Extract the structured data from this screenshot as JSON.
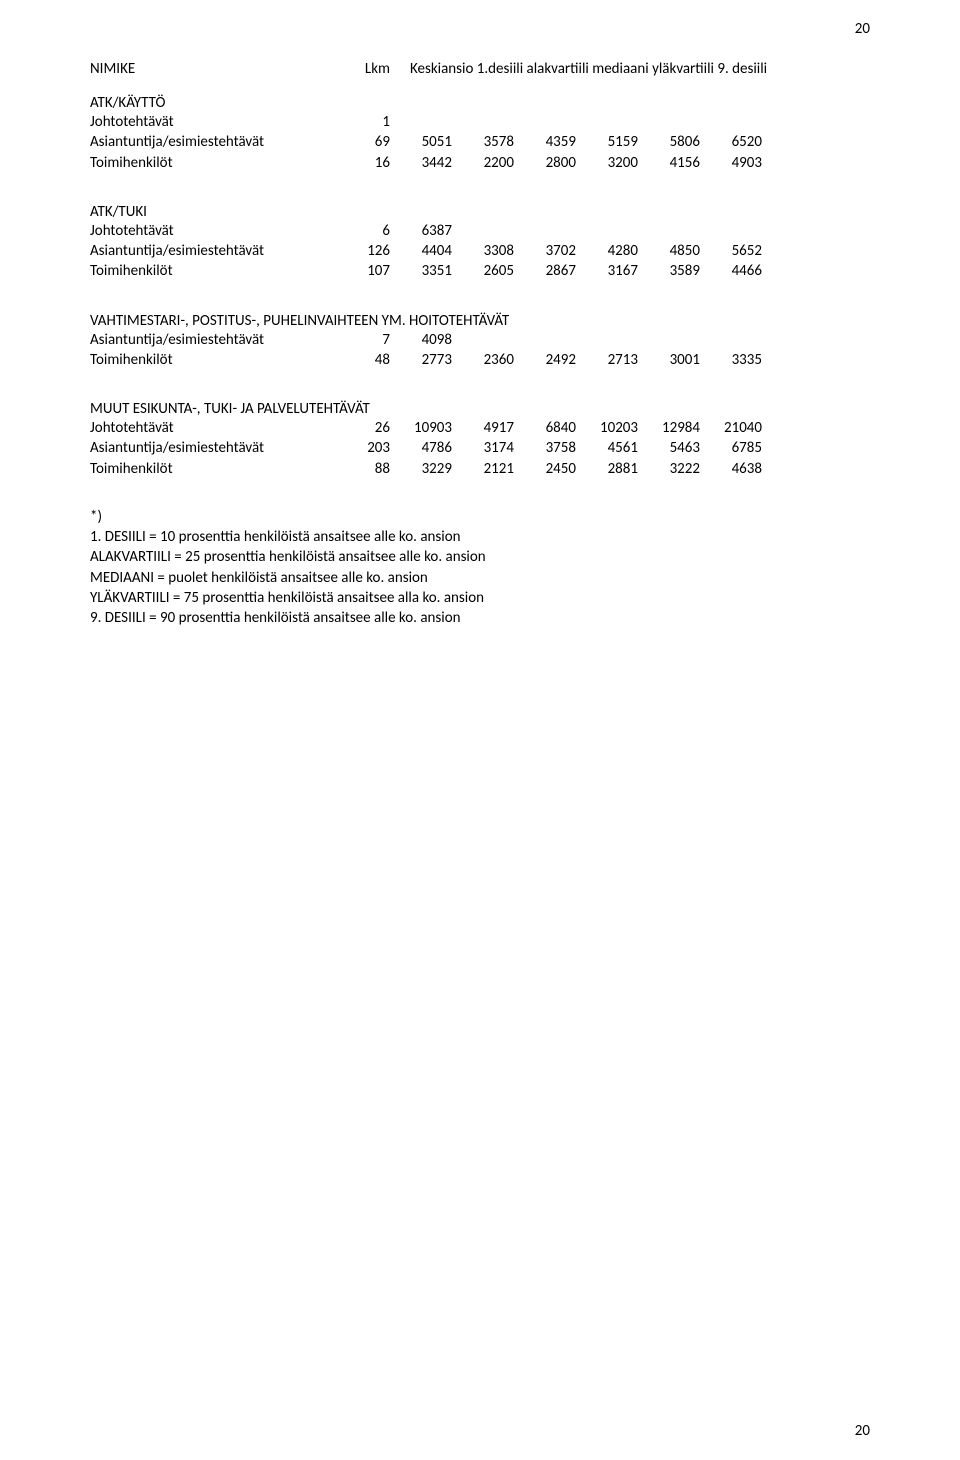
{
  "page_number_top": "20",
  "page_number_bottom": "20",
  "header": {
    "col_name": "NIMIKE",
    "col_lkm": "Lkm",
    "col_rest": "Keskiansio 1.desiili alakvartiili mediaani yläkvartiili 9. desiili"
  },
  "sections": [
    {
      "title": "ATK/KÄYTTÖ",
      "rows": [
        {
          "label": "Johtotehtävät",
          "lkm": "1",
          "vals": [
            "",
            "",
            "",
            "",
            "",
            ""
          ]
        },
        {
          "label": "Asiantuntija/esimiestehtävät",
          "lkm": "69",
          "vals": [
            "5051",
            "3578",
            "4359",
            "5159",
            "5806",
            "6520"
          ]
        },
        {
          "label": "Toimihenkilöt",
          "lkm": "16",
          "vals": [
            "3442",
            "2200",
            "2800",
            "3200",
            "4156",
            "4903"
          ]
        }
      ]
    },
    {
      "title": "ATK/TUKI",
      "rows": [
        {
          "label": "Johtotehtävät",
          "lkm": "6",
          "vals": [
            "6387",
            "",
            "",
            "",
            "",
            ""
          ]
        },
        {
          "label": "Asiantuntija/esimiestehtävät",
          "lkm": "126",
          "vals": [
            "4404",
            "3308",
            "3702",
            "4280",
            "4850",
            "5652"
          ]
        },
        {
          "label": "Toimihenkilöt",
          "lkm": "107",
          "vals": [
            "3351",
            "2605",
            "2867",
            "3167",
            "3589",
            "4466"
          ]
        }
      ]
    },
    {
      "title": "VAHTIMESTARI-, POSTITUS-, PUHELINVAIHTEEN YM. HOITOTEHTÄVÄT",
      "rows": [
        {
          "label": "Asiantuntija/esimiestehtävät",
          "lkm": "7",
          "vals": [
            "4098",
            "",
            "",
            "",
            "",
            ""
          ]
        },
        {
          "label": "Toimihenkilöt",
          "lkm": "48",
          "vals": [
            "2773",
            "2360",
            "2492",
            "2713",
            "3001",
            "3335"
          ]
        }
      ]
    },
    {
      "title": "MUUT ESIKUNTA-, TUKI- JA PALVELUTEHTÄVÄT",
      "rows": [
        {
          "label": "Johtotehtävät",
          "lkm": "26",
          "vals": [
            "10903",
            "4917",
            "6840",
            "10203",
            "12984",
            "21040"
          ]
        },
        {
          "label": "Asiantuntija/esimiestehtävät",
          "lkm": "203",
          "vals": [
            "4786",
            "3174",
            "3758",
            "4561",
            "5463",
            "6785"
          ]
        },
        {
          "label": "Toimihenkilöt",
          "lkm": "88",
          "vals": [
            "3229",
            "2121",
            "2450",
            "2881",
            "3222",
            "4638"
          ]
        }
      ]
    }
  ],
  "notes": [
    "*)",
    "1. DESIILI = 10 prosenttia henkilöistä ansaitsee alle ko. ansion",
    "ALAKVARTIILI = 25 prosenttia henkilöistä ansaitsee alle ko. ansion",
    "MEDIAANI = puolet henkilöistä ansaitsee alle ko. ansion",
    "YLÄKVARTIILI = 75 prosenttia henkilöistä ansaitsee alla ko. ansion",
    "9. DESIILI = 90 prosenttia henkilöistä ansaitsee alle ko. ansion"
  ]
}
